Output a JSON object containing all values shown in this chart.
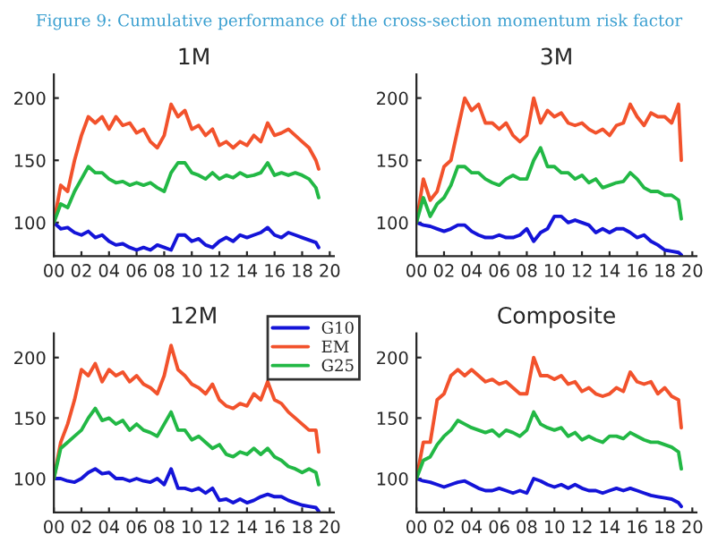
{
  "chart_data": [
    {
      "type": "line",
      "title": "1M",
      "annotations": [
        "Figure 9: Cumulative performance of the cross-section momentum risk factor"
      ],
      "x": [
        0,
        0.5,
        1,
        1.5,
        2,
        2.5,
        3,
        3.5,
        4,
        4.5,
        5,
        5.5,
        6,
        6.5,
        7,
        7.5,
        8,
        8.5,
        9,
        9.5,
        10,
        10.5,
        11,
        11.5,
        12,
        12.5,
        13,
        13.5,
        14,
        14.5,
        15,
        15.5,
        16,
        16.5,
        17,
        17.5,
        18,
        18.5,
        19,
        19.2
      ],
      "xlim": [
        0,
        20.3
      ],
      "xticks": [
        {
          "value": 0,
          "label": "00"
        },
        {
          "value": 2,
          "label": "02"
        },
        {
          "value": 4,
          "label": "04"
        },
        {
          "value": 6,
          "label": "06"
        },
        {
          "value": 8,
          "label": "08"
        },
        {
          "value": 10,
          "label": "10"
        },
        {
          "value": 12,
          "label": "12"
        },
        {
          "value": 14,
          "label": "14"
        },
        {
          "value": 16,
          "label": "16"
        },
        {
          "value": 18,
          "label": "18"
        },
        {
          "value": 20,
          "label": "20"
        }
      ],
      "ylim": [
        73,
        219
      ],
      "yticks": [
        100,
        150,
        200
      ],
      "grid": false,
      "legend": false,
      "series": [
        {
          "color": "#1414d8",
          "values": [
            100,
            95,
            96,
            92,
            90,
            93,
            88,
            90,
            85,
            82,
            83,
            80,
            78,
            80,
            78,
            82,
            80,
            78,
            90,
            90,
            85,
            87,
            82,
            80,
            85,
            88,
            85,
            90,
            88,
            90,
            92,
            96,
            90,
            88,
            92,
            90,
            88,
            86,
            84,
            80
          ]
        },
        {
          "color": "#f2522c",
          "values": [
            100,
            130,
            125,
            150,
            170,
            185,
            180,
            185,
            175,
            185,
            178,
            180,
            172,
            175,
            165,
            160,
            170,
            195,
            185,
            190,
            175,
            178,
            170,
            175,
            162,
            165,
            160,
            165,
            162,
            170,
            165,
            180,
            170,
            172,
            175,
            170,
            165,
            160,
            150,
            143
          ]
        },
        {
          "color": "#22b845",
          "values": [
            100,
            115,
            112,
            125,
            135,
            145,
            140,
            140,
            135,
            132,
            133,
            130,
            132,
            130,
            132,
            128,
            125,
            140,
            148,
            148,
            140,
            138,
            135,
            140,
            135,
            138,
            136,
            140,
            137,
            138,
            140,
            148,
            138,
            140,
            138,
            140,
            138,
            135,
            128,
            120
          ]
        }
      ]
    },
    {
      "type": "line",
      "title": "3M",
      "x": [
        0,
        0.5,
        1,
        1.5,
        2,
        2.5,
        3,
        3.5,
        4,
        4.5,
        5,
        5.5,
        6,
        6.5,
        7,
        7.5,
        8,
        8.5,
        9,
        9.5,
        10,
        10.5,
        11,
        11.5,
        12,
        12.5,
        13,
        13.5,
        14,
        14.5,
        15,
        15.5,
        16,
        16.5,
        17,
        17.5,
        18,
        18.5,
        19,
        19.2
      ],
      "xlim": [
        0,
        20.3
      ],
      "xticks": [
        {
          "value": 0,
          "label": "00"
        },
        {
          "value": 2,
          "label": "02"
        },
        {
          "value": 4,
          "label": "04"
        },
        {
          "value": 6,
          "label": "06"
        },
        {
          "value": 8,
          "label": "08"
        },
        {
          "value": 10,
          "label": "10"
        },
        {
          "value": 12,
          "label": "12"
        },
        {
          "value": 14,
          "label": "14"
        },
        {
          "value": 16,
          "label": "16"
        },
        {
          "value": 18,
          "label": "18"
        },
        {
          "value": 20,
          "label": "20"
        }
      ],
      "ylim": [
        73,
        219
      ],
      "yticks": [
        100,
        150,
        200
      ],
      "grid": false,
      "legend": false,
      "series": [
        {
          "color": "#1414d8",
          "values": [
            100,
            98,
            97,
            95,
            93,
            95,
            98,
            98,
            93,
            90,
            88,
            88,
            90,
            88,
            88,
            90,
            95,
            85,
            92,
            95,
            105,
            105,
            100,
            102,
            100,
            98,
            92,
            95,
            92,
            95,
            95,
            92,
            88,
            90,
            85,
            82,
            78,
            77,
            76,
            74
          ]
        },
        {
          "color": "#f2522c",
          "values": [
            100,
            135,
            118,
            125,
            145,
            150,
            175,
            200,
            190,
            195,
            180,
            180,
            175,
            180,
            170,
            165,
            170,
            200,
            180,
            190,
            185,
            188,
            180,
            178,
            180,
            175,
            172,
            175,
            170,
            178,
            180,
            195,
            185,
            178,
            188,
            185,
            185,
            180,
            195,
            150
          ]
        },
        {
          "color": "#22b845",
          "values": [
            100,
            120,
            105,
            115,
            120,
            130,
            145,
            145,
            140,
            140,
            135,
            132,
            130,
            135,
            138,
            135,
            135,
            150,
            160,
            145,
            145,
            140,
            140,
            135,
            138,
            132,
            135,
            128,
            130,
            132,
            133,
            140,
            135,
            128,
            125,
            125,
            122,
            122,
            118,
            103
          ]
        }
      ]
    },
    {
      "type": "line",
      "title": "12M",
      "x": [
        0,
        0.5,
        1,
        1.5,
        2,
        2.5,
        3,
        3.5,
        4,
        4.5,
        5,
        5.5,
        6,
        6.5,
        7,
        7.5,
        8,
        8.5,
        9,
        9.5,
        10,
        10.5,
        11,
        11.5,
        12,
        12.5,
        13,
        13.5,
        14,
        14.5,
        15,
        15.5,
        16,
        16.5,
        17,
        17.5,
        18,
        18.5,
        19,
        19.2
      ],
      "xlim": [
        0,
        20.3
      ],
      "xticks": [
        {
          "value": 0,
          "label": "00"
        },
        {
          "value": 2,
          "label": "02"
        },
        {
          "value": 4,
          "label": "04"
        },
        {
          "value": 6,
          "label": "06"
        },
        {
          "value": 8,
          "label": "08"
        },
        {
          "value": 10,
          "label": "10"
        },
        {
          "value": 12,
          "label": "12"
        },
        {
          "value": 14,
          "label": "14"
        },
        {
          "value": 16,
          "label": "16"
        },
        {
          "value": 18,
          "label": "18"
        },
        {
          "value": 20,
          "label": "20"
        }
      ],
      "ylim": [
        72,
        220
      ],
      "yticks": [
        100,
        150,
        200
      ],
      "grid": false,
      "legend": "top right",
      "series": [
        {
          "name": "G10",
          "color": "#1414d8",
          "values": [
            100,
            100,
            98,
            97,
            100,
            105,
            108,
            104,
            105,
            100,
            100,
            98,
            100,
            98,
            97,
            100,
            95,
            108,
            92,
            92,
            90,
            92,
            88,
            92,
            82,
            83,
            80,
            83,
            80,
            82,
            85,
            87,
            85,
            85,
            82,
            80,
            78,
            77,
            76,
            73
          ]
        },
        {
          "name": "EM",
          "color": "#f2522c",
          "values": [
            100,
            130,
            145,
            165,
            190,
            185,
            195,
            180,
            190,
            185,
            188,
            180,
            185,
            178,
            175,
            170,
            185,
            210,
            190,
            185,
            178,
            175,
            170,
            178,
            165,
            160,
            158,
            162,
            160,
            170,
            165,
            180,
            165,
            162,
            155,
            150,
            145,
            140,
            140,
            122
          ]
        },
        {
          "name": "G25",
          "color": "#22b845",
          "values": [
            100,
            125,
            130,
            135,
            140,
            150,
            158,
            148,
            150,
            145,
            148,
            140,
            145,
            140,
            138,
            135,
            145,
            155,
            140,
            140,
            132,
            135,
            130,
            125,
            128,
            120,
            118,
            122,
            120,
            125,
            120,
            125,
            118,
            115,
            110,
            108,
            105,
            108,
            105,
            95
          ]
        }
      ]
    },
    {
      "type": "line",
      "title": "Composite",
      "x": [
        0,
        0.5,
        1,
        1.5,
        2,
        2.5,
        3,
        3.5,
        4,
        4.5,
        5,
        5.5,
        6,
        6.5,
        7,
        7.5,
        8,
        8.5,
        9,
        9.5,
        10,
        10.5,
        11,
        11.5,
        12,
        12.5,
        13,
        13.5,
        14,
        14.5,
        15,
        15.5,
        16,
        16.5,
        17,
        17.5,
        18,
        18.5,
        19,
        19.2
      ],
      "xlim": [
        0,
        20.3
      ],
      "xticks": [
        {
          "value": 0,
          "label": "00"
        },
        {
          "value": 2,
          "label": "02"
        },
        {
          "value": 4,
          "label": "04"
        },
        {
          "value": 6,
          "label": "06"
        },
        {
          "value": 8,
          "label": "08"
        },
        {
          "value": 10,
          "label": "10"
        },
        {
          "value": 12,
          "label": "12"
        },
        {
          "value": 14,
          "label": "14"
        },
        {
          "value": 16,
          "label": "16"
        },
        {
          "value": 18,
          "label": "18"
        },
        {
          "value": 20,
          "label": "20"
        }
      ],
      "ylim": [
        72,
        220
      ],
      "yticks": [
        100,
        150,
        200
      ],
      "grid": false,
      "legend": false,
      "series": [
        {
          "color": "#1414d8",
          "values": [
            100,
            98,
            97,
            95,
            93,
            95,
            97,
            98,
            95,
            92,
            90,
            90,
            92,
            90,
            88,
            90,
            88,
            100,
            98,
            95,
            93,
            95,
            92,
            95,
            92,
            90,
            90,
            88,
            90,
            92,
            90,
            92,
            90,
            88,
            86,
            85,
            84,
            83,
            80,
            77
          ]
        },
        {
          "color": "#f2522c",
          "values": [
            100,
            130,
            130,
            165,
            170,
            185,
            190,
            185,
            190,
            185,
            180,
            182,
            178,
            180,
            175,
            170,
            170,
            200,
            185,
            185,
            182,
            185,
            178,
            180,
            172,
            175,
            170,
            168,
            170,
            175,
            172,
            188,
            180,
            178,
            180,
            170,
            175,
            168,
            165,
            142
          ]
        },
        {
          "color": "#22b845",
          "values": [
            100,
            115,
            118,
            128,
            135,
            140,
            148,
            145,
            142,
            140,
            138,
            140,
            135,
            140,
            138,
            135,
            140,
            155,
            145,
            142,
            140,
            142,
            135,
            138,
            132,
            135,
            132,
            130,
            135,
            135,
            133,
            138,
            135,
            132,
            130,
            130,
            128,
            126,
            122,
            108
          ]
        }
      ]
    }
  ]
}
